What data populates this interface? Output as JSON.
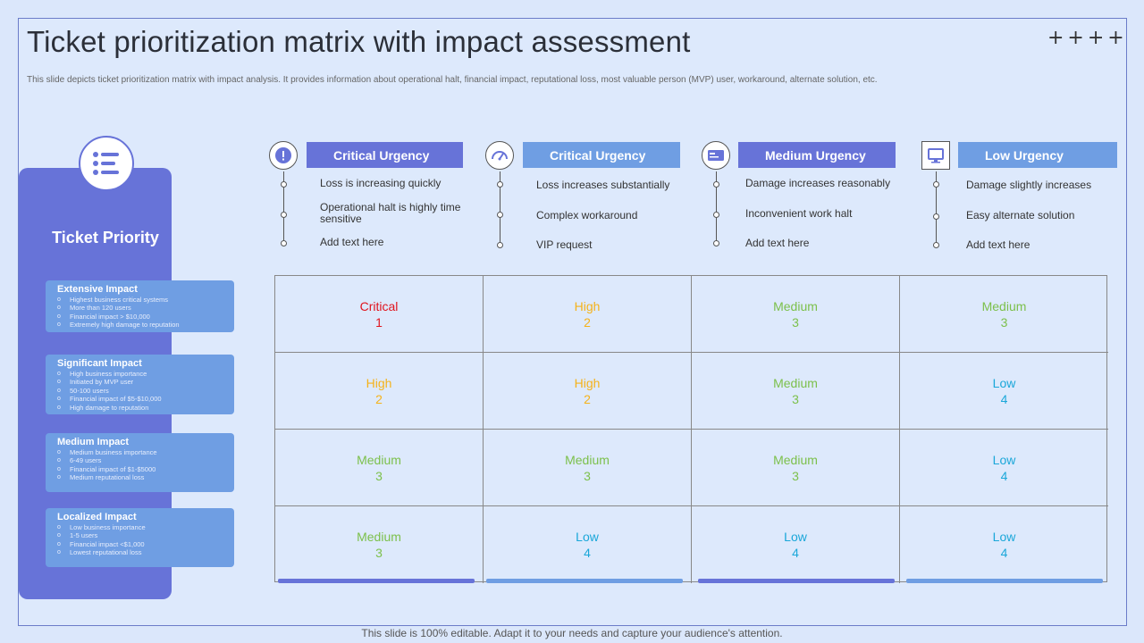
{
  "slide": {
    "title": "Ticket prioritization matrix with impact assessment",
    "decoration": "++++",
    "subtitle": "This slide depicts ticket prioritization matrix with impact analysis. It provides information about operational halt, financial impact, reputational loss, most valuable person (MVP) user, workaround, alternate solution, etc.",
    "footer": "This slide is 100% editable. Adapt it to your needs and capture your audience's attention."
  },
  "left_panel": {
    "title": "Ticket Priority",
    "icon": "list-icon",
    "impacts": [
      {
        "title": "Extensive Impact",
        "items": [
          "Highest business critical systems",
          "More than 120 users",
          "Financial impact > $10,000",
          "Extremely high damage to reputation"
        ]
      },
      {
        "title": "Significant Impact",
        "items": [
          "High business importance",
          "Initiated by MVP user",
          "50-100 users",
          "Financial impact of $5-$10,000",
          "High damage to reputation"
        ]
      },
      {
        "title": "Medium Impact",
        "items": [
          "Medium business importance",
          "6-49 users",
          "Financial impact of $1-$5000",
          "Medium reputational loss"
        ]
      },
      {
        "title": "Localized Impact",
        "items": [
          "Low business importance",
          "1-5 users",
          "Financial impact <$1,000",
          "Lowest reputational loss"
        ]
      }
    ]
  },
  "urgency": [
    {
      "label": "Critical Urgency",
      "icon": "warning-icon",
      "color": "#6773d8",
      "items": [
        "Loss is increasing quickly",
        "Operational halt is highly time sensitive",
        "Add text here"
      ]
    },
    {
      "label": "Critical Urgency",
      "icon": "gauge-icon",
      "color": "#6f9ee3",
      "items": [
        "Loss increases substantially",
        "Complex workaround",
        "VIP request"
      ]
    },
    {
      "label": "Medium Urgency",
      "icon": "card-icon",
      "color": "#6773d8",
      "items": [
        "Damage increases reasonably",
        "Inconvenient work halt",
        "Add text here"
      ]
    },
    {
      "label": "Low Urgency",
      "icon": "monitor-icon",
      "color": "#6f9ee3",
      "items": [
        "Damage slightly increases",
        "Easy alternate solution",
        "Add text here"
      ]
    }
  ],
  "matrix": {
    "colors": {
      "Critical": "#e0141e",
      "High": "#f5b21a",
      "Medium": "#7cc04b",
      "Low": "#1aa7d9"
    },
    "rows": [
      [
        {
          "label": "Critical",
          "value": "1"
        },
        {
          "label": "High",
          "value": "2"
        },
        {
          "label": "Medium",
          "value": "3"
        },
        {
          "label": "Medium",
          "value": "3"
        }
      ],
      [
        {
          "label": "High",
          "value": "2"
        },
        {
          "label": "High",
          "value": "2"
        },
        {
          "label": "Medium",
          "value": "3"
        },
        {
          "label": "Low",
          "value": "4"
        }
      ],
      [
        {
          "label": "Medium",
          "value": "3"
        },
        {
          "label": "Medium",
          "value": "3"
        },
        {
          "label": "Medium",
          "value": "3"
        },
        {
          "label": "Low",
          "value": "4"
        }
      ],
      [
        {
          "label": "Medium",
          "value": "3"
        },
        {
          "label": "Low",
          "value": "4"
        },
        {
          "label": "Low",
          "value": "4"
        },
        {
          "label": "Low",
          "value": "4"
        }
      ]
    ]
  }
}
